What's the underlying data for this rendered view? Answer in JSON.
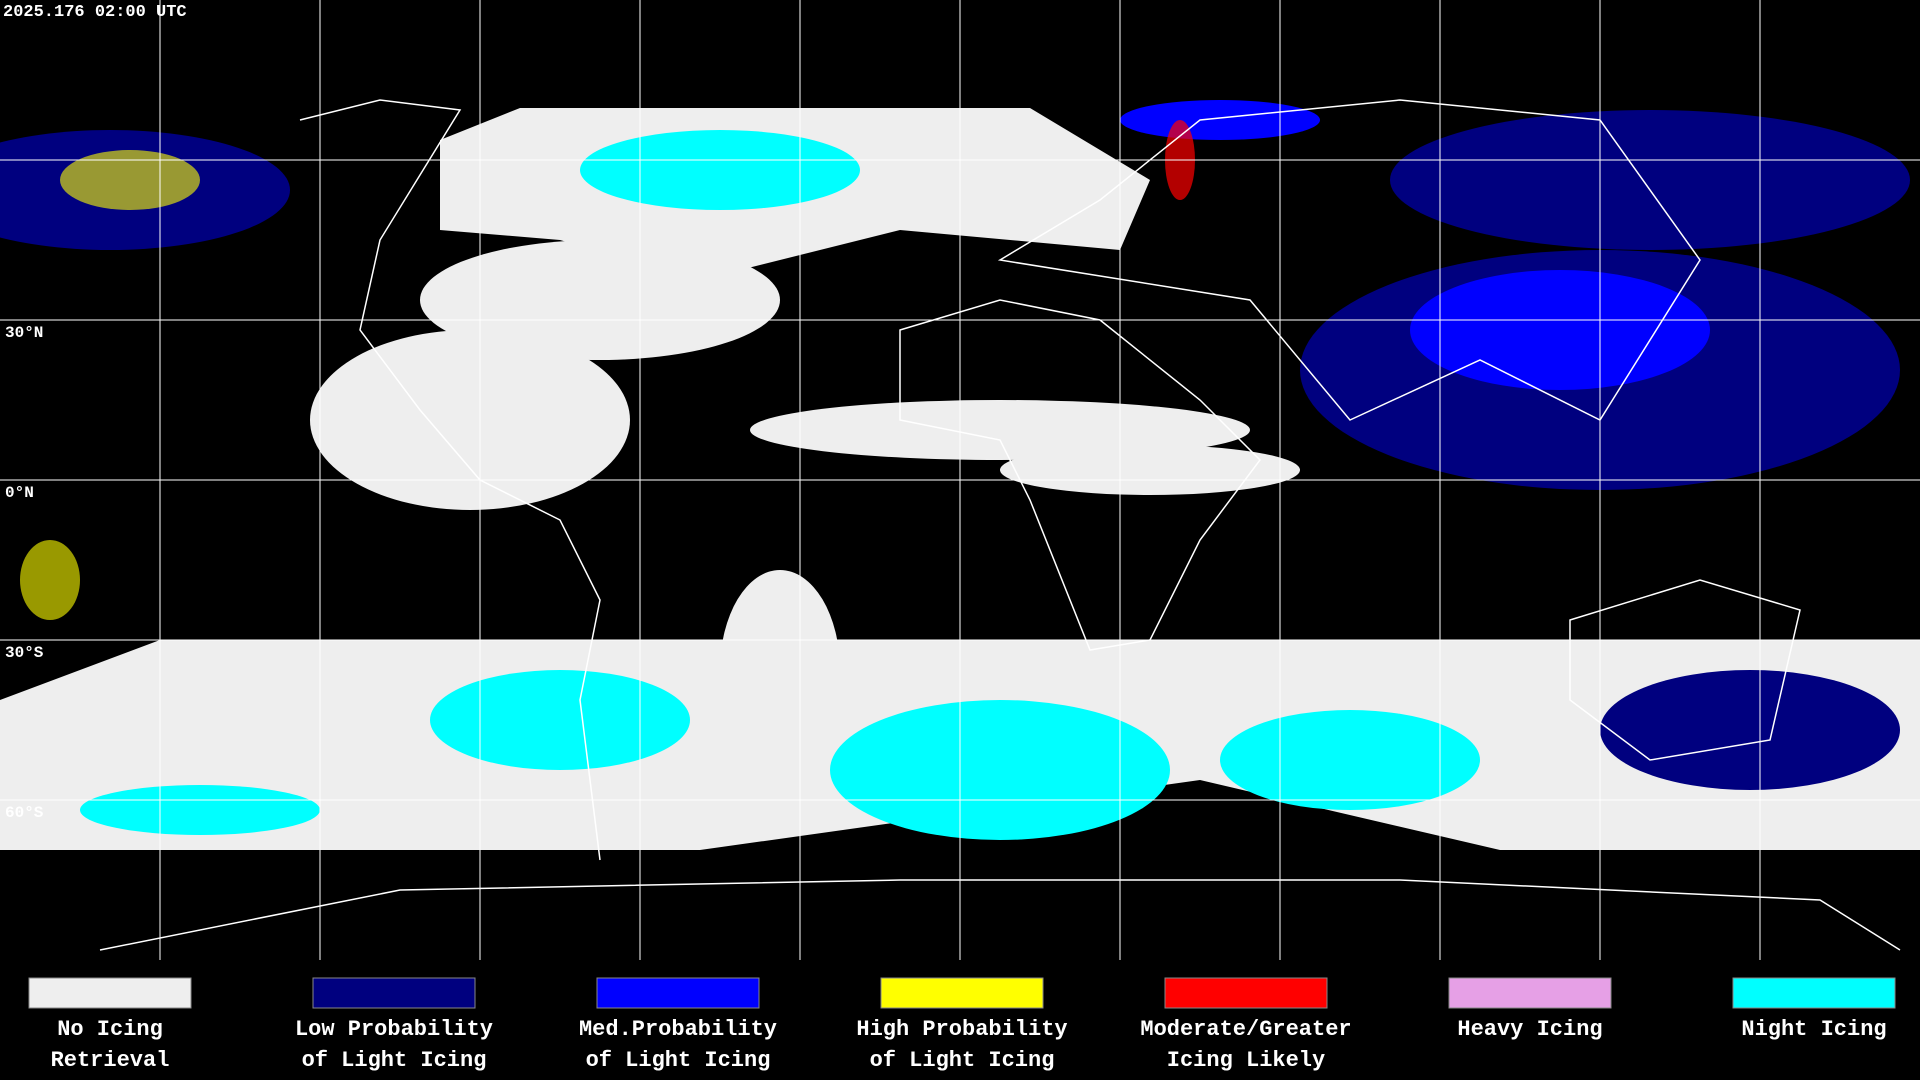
{
  "header": {
    "timestamp": "2025.176 02:00 UTC"
  },
  "latitude_labels": [
    "30°N",
    "0°N",
    "30°S",
    "60°S"
  ],
  "legend": [
    {
      "lines": [
        "No Icing",
        "Retrieval"
      ],
      "color": "#eeeeee"
    },
    {
      "lines": [
        "Low Probability",
        "of Light Icing"
      ],
      "color": "#00007f"
    },
    {
      "lines": [
        "Med.Probability",
        "of Light Icing"
      ],
      "color": "#0000ff"
    },
    {
      "lines": [
        "High Probability",
        "of Light Icing"
      ],
      "color": "#ffff00"
    },
    {
      "lines": [
        "Moderate/Greater",
        "Icing Likely"
      ],
      "color": "#ff0000"
    },
    {
      "lines": [
        "Heavy Icing"
      ],
      "color": "#e6a0e6"
    },
    {
      "lines": [
        "Night Icing"
      ],
      "color": "#00ffff"
    }
  ]
}
